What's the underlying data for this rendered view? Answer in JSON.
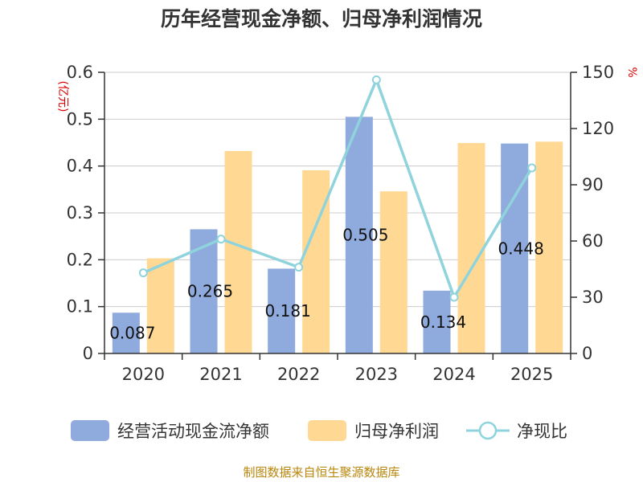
{
  "chart_data": {
    "type": "bar",
    "title": "历年经营现金净额、归母净利润情况",
    "categories": [
      "2020",
      "2021",
      "2022",
      "2023",
      "2024",
      "2025"
    ],
    "series": [
      {
        "name": "经营活动现金流净额",
        "kind": "bar",
        "axis": "left",
        "color": "#8faadc",
        "values": [
          0.087,
          0.265,
          0.181,
          0.505,
          0.134,
          0.448
        ],
        "labels": [
          "0.087",
          "0.265",
          "0.181",
          "0.505",
          "0.134",
          "0.448"
        ]
      },
      {
        "name": "归母净利润",
        "kind": "bar",
        "axis": "left",
        "color": "#ffd994",
        "values": [
          0.203,
          0.432,
          0.391,
          0.346,
          0.449,
          0.452
        ]
      },
      {
        "name": "净现比",
        "kind": "line",
        "axis": "right",
        "color": "#8fd3dc",
        "values": [
          43,
          61,
          46,
          146,
          30,
          99
        ]
      }
    ],
    "y_left": {
      "unit": "(亿元)",
      "ylim": [
        0,
        0.6
      ],
      "ticks": [
        "0",
        "0.1",
        "0.2",
        "0.3",
        "0.4",
        "0.5",
        "0.6"
      ],
      "tick_values": [
        0,
        0.1,
        0.2,
        0.3,
        0.4,
        0.5,
        0.6
      ]
    },
    "y_right": {
      "unit": "%",
      "ylim": [
        0,
        150
      ],
      "ticks": [
        "0",
        "30",
        "60",
        "90",
        "120",
        "150"
      ],
      "tick_values": [
        0,
        30,
        60,
        90,
        120,
        150
      ]
    },
    "grid": true,
    "legend_position": "bottom",
    "source": "制图数据来自恒生聚源数据库"
  }
}
